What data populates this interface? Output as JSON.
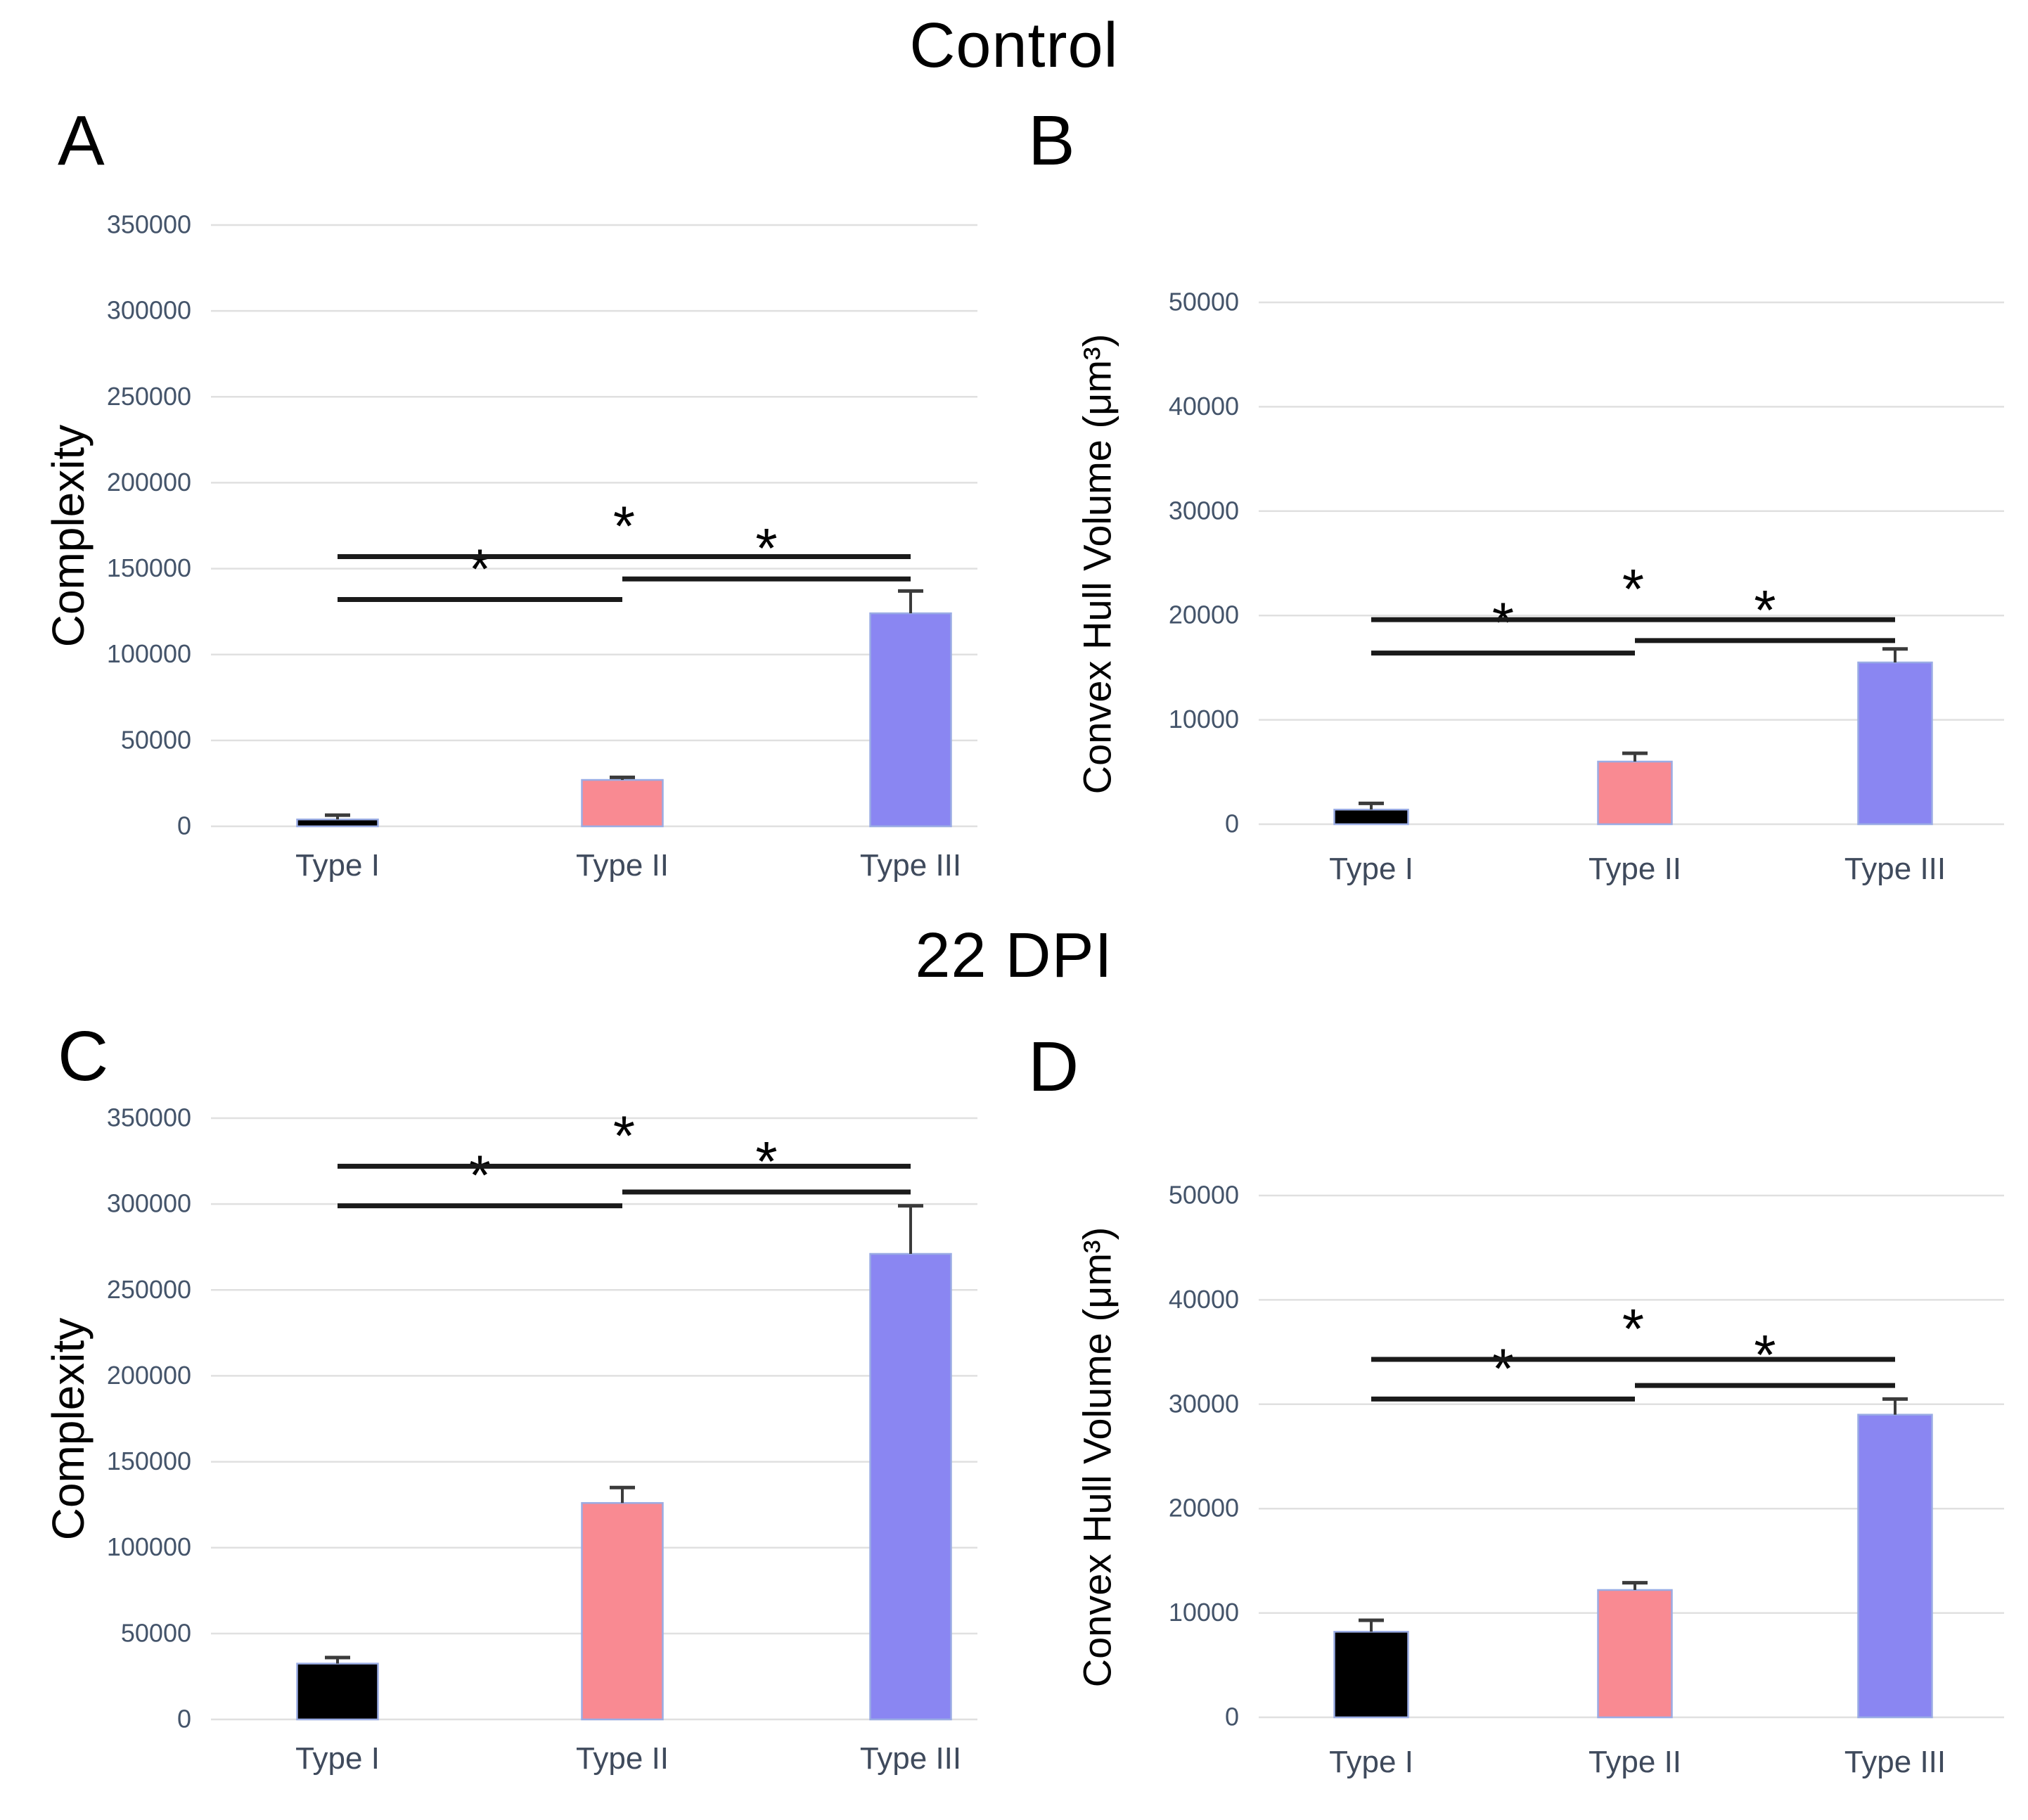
{
  "figure": {
    "background": "#ffffff",
    "titles": [
      {
        "text": "Control"
      },
      {
        "text": "22 DPI"
      }
    ]
  },
  "palette": {
    "bar_fill": [
      "#000000",
      "#f98a92",
      "#8a86f2"
    ],
    "bar_stroke": "#9aace4",
    "gridline": "#e0e0e0",
    "tick_label": "#44546a",
    "category_label": "#3f4a5c",
    "sig_line": "#1a1a1a",
    "error_bar": "#3b3b3b",
    "asterisk": "#000000"
  },
  "chart_data": [
    {
      "panel": "A",
      "group": "Control",
      "type": "bar",
      "ylabel": "Complexity",
      "categories": [
        "Type I",
        "Type II",
        "Type III"
      ],
      "values": [
        4000,
        27000,
        124000
      ],
      "errors_plus": [
        2500,
        1500,
        13000
      ],
      "ylim": [
        0,
        350000
      ],
      "yticks": [
        0,
        50000,
        100000,
        150000,
        200000,
        250000,
        300000,
        350000
      ],
      "grid": true,
      "legend": null,
      "significance": [
        {
          "a": 0,
          "b": 1,
          "y": 132000,
          "label": "*"
        },
        {
          "a": 1,
          "b": 2,
          "y": 144000,
          "label": "*"
        },
        {
          "a": 0,
          "b": 2,
          "y": 157000,
          "label": "*"
        }
      ]
    },
    {
      "panel": "B",
      "group": "Control",
      "type": "bar",
      "ylabel": "Convex Hull Volume (μm³)",
      "categories": [
        "Type I",
        "Type II",
        "Type III"
      ],
      "values": [
        1400,
        6000,
        15500
      ],
      "errors_plus": [
        600,
        800,
        1300
      ],
      "ylim": [
        0,
        50000
      ],
      "yticks": [
        0,
        10000,
        20000,
        30000,
        40000,
        50000
      ],
      "grid": true,
      "legend": null,
      "significance": [
        {
          "a": 0,
          "b": 1,
          "y": 16400,
          "label": "*"
        },
        {
          "a": 1,
          "b": 2,
          "y": 17600,
          "label": "*"
        },
        {
          "a": 0,
          "b": 2,
          "y": 19600,
          "label": "*"
        }
      ]
    },
    {
      "panel": "C",
      "group": "22 DPI",
      "type": "bar",
      "ylabel": "Complexity",
      "categories": [
        "Type I",
        "Type II",
        "Type III"
      ],
      "values": [
        32500,
        126000,
        271000
      ],
      "errors_plus": [
        3500,
        9000,
        28000
      ],
      "ylim": [
        0,
        350000
      ],
      "yticks": [
        0,
        50000,
        100000,
        150000,
        200000,
        250000,
        300000,
        350000
      ],
      "grid": true,
      "legend": null,
      "significance": [
        {
          "a": 0,
          "b": 1,
          "y": 299000,
          "label": "*"
        },
        {
          "a": 1,
          "b": 2,
          "y": 307000,
          "label": "*"
        },
        {
          "a": 0,
          "b": 2,
          "y": 322000,
          "label": "*"
        }
      ]
    },
    {
      "panel": "D",
      "group": "22 DPI",
      "type": "bar",
      "ylabel": "Convex Hull Volume (μm³)",
      "categories": [
        "Type I",
        "Type II",
        "Type III"
      ],
      "values": [
        8200,
        12200,
        29000
      ],
      "errors_plus": [
        1100,
        700,
        1500
      ],
      "ylim": [
        0,
        50000
      ],
      "yticks": [
        0,
        10000,
        20000,
        30000,
        40000,
        50000
      ],
      "grid": true,
      "legend": null,
      "significance": [
        {
          "a": 0,
          "b": 1,
          "y": 30500,
          "label": "*"
        },
        {
          "a": 1,
          "b": 2,
          "y": 31800,
          "label": "*"
        },
        {
          "a": 0,
          "b": 2,
          "y": 34300,
          "label": "*"
        }
      ]
    }
  ]
}
